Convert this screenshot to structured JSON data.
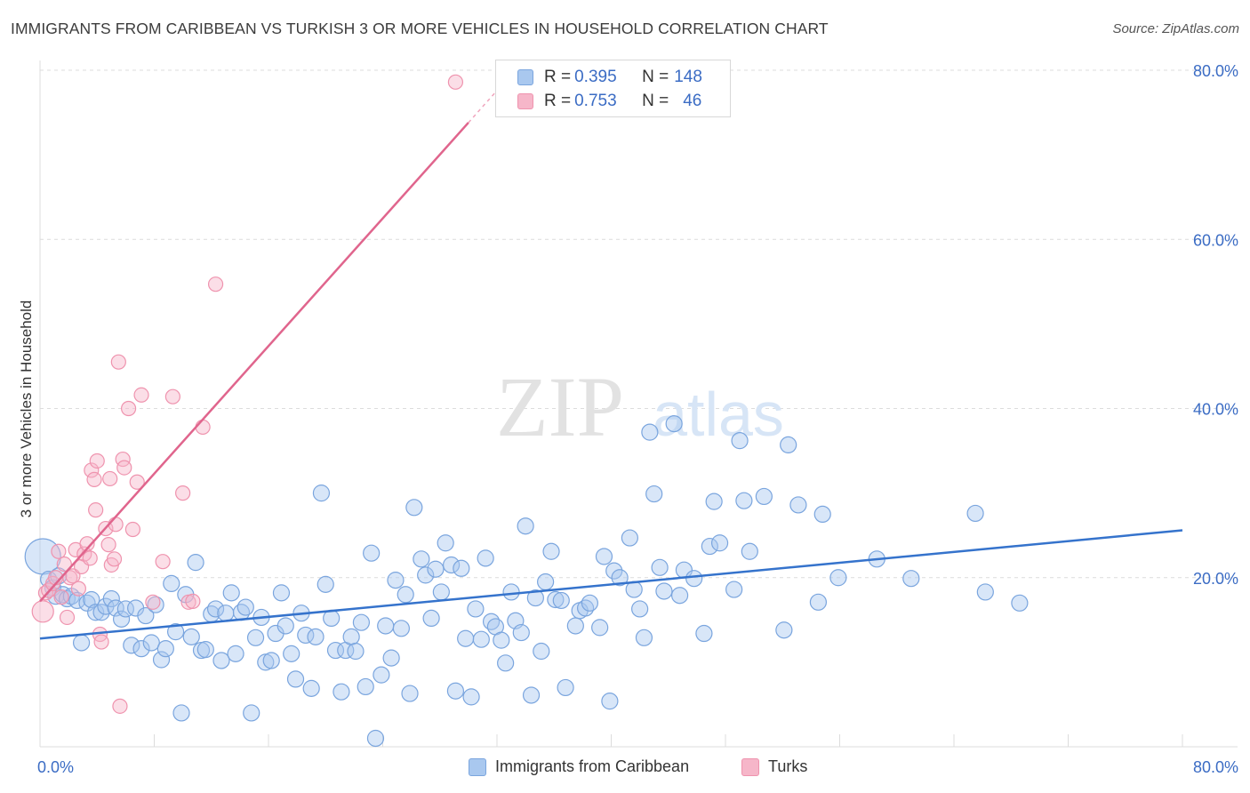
{
  "title": "IMMIGRANTS FROM CARIBBEAN VS TURKISH 3 OR MORE VEHICLES IN HOUSEHOLD CORRELATION CHART",
  "source": "Source: ZipAtlas.com",
  "watermark": {
    "zip": "ZIP",
    "atlas": "atlas"
  },
  "legend": {
    "caribbean": {
      "r_label": "R = ",
      "r_value": "0.395",
      "n_label": "N = ",
      "n_value": "148"
    },
    "turks": {
      "r_label": "R = ",
      "r_value": "0.753",
      "n_label": "N = ",
      "n_value": "46"
    }
  },
  "colors": {
    "blue_fill": "#a9c8ef",
    "blue_stroke": "#7aa5de",
    "blue_line": "#3573cc",
    "pink_fill": "#f6b6c9",
    "pink_stroke": "#ef93ae",
    "pink_line": "#e0658d",
    "axis_text": "#3b6cc4",
    "grid": "#dcdcdc"
  },
  "chart_data": {
    "type": "scatter",
    "title": "IMMIGRANTS FROM CARIBBEAN VS TURKISH 3 OR MORE VEHICLES IN HOUSEHOLD CORRELATION CHART",
    "xlabel": "",
    "ylabel": "3 or more Vehicles in Household",
    "xlim": [
      0,
      80
    ],
    "ylim": [
      0,
      80
    ],
    "x_tick_labels": [
      "0.0%",
      "80.0%"
    ],
    "y_tick_labels": [
      "20.0%",
      "40.0%",
      "60.0%",
      "80.0%"
    ],
    "y_ticks": [
      20,
      40,
      60,
      80
    ],
    "grid": true,
    "legend_position": "top-center",
    "series": [
      {
        "name": "Immigrants from Caribbean",
        "trendline": {
          "x": [
            0,
            80
          ],
          "y": [
            12.8,
            25.6
          ]
        },
        "points": [
          [
            0.2,
            22.5
          ],
          [
            0.6,
            19.8
          ],
          [
            0.9,
            18.8
          ],
          [
            1.1,
            17.8
          ],
          [
            1.3,
            20.2
          ],
          [
            1.6,
            18.0
          ],
          [
            1.9,
            17.5
          ],
          [
            2.2,
            17.8
          ],
          [
            2.6,
            17.3
          ],
          [
            2.9,
            12.3
          ],
          [
            3.3,
            17.0
          ],
          [
            3.6,
            17.4
          ],
          [
            3.9,
            15.9
          ],
          [
            4.3,
            15.9
          ],
          [
            4.6,
            16.6
          ],
          [
            5.0,
            17.5
          ],
          [
            5.3,
            16.4
          ],
          [
            5.7,
            15.1
          ],
          [
            6.0,
            16.3
          ],
          [
            6.4,
            12.0
          ],
          [
            6.7,
            16.4
          ],
          [
            7.1,
            11.6
          ],
          [
            7.4,
            15.5
          ],
          [
            7.8,
            12.3
          ],
          [
            8.1,
            16.8
          ],
          [
            8.5,
            10.3
          ],
          [
            8.8,
            11.6
          ],
          [
            9.2,
            19.3
          ],
          [
            9.5,
            13.6
          ],
          [
            9.9,
            4.0
          ],
          [
            10.2,
            18.0
          ],
          [
            10.6,
            13.0
          ],
          [
            10.9,
            21.8
          ],
          [
            11.3,
            11.4
          ],
          [
            11.6,
            11.5
          ],
          [
            12.0,
            15.7
          ],
          [
            12.3,
            16.3
          ],
          [
            12.7,
            10.2
          ],
          [
            13.0,
            15.8
          ],
          [
            13.4,
            18.2
          ],
          [
            13.7,
            11.0
          ],
          [
            14.1,
            15.9
          ],
          [
            14.4,
            16.5
          ],
          [
            14.8,
            4.0
          ],
          [
            15.1,
            12.9
          ],
          [
            15.5,
            15.3
          ],
          [
            15.8,
            10.0
          ],
          [
            16.2,
            10.2
          ],
          [
            16.5,
            13.4
          ],
          [
            16.9,
            18.2
          ],
          [
            17.2,
            14.3
          ],
          [
            17.6,
            11.0
          ],
          [
            17.9,
            8.0
          ],
          [
            18.3,
            15.8
          ],
          [
            18.6,
            13.2
          ],
          [
            19.0,
            6.9
          ],
          [
            19.3,
            13.0
          ],
          [
            19.7,
            30.0
          ],
          [
            20.0,
            19.2
          ],
          [
            20.4,
            15.2
          ],
          [
            20.7,
            11.4
          ],
          [
            21.1,
            6.5
          ],
          [
            21.4,
            11.4
          ],
          [
            21.8,
            13.0
          ],
          [
            22.1,
            11.3
          ],
          [
            22.5,
            14.7
          ],
          [
            22.8,
            7.1
          ],
          [
            23.2,
            22.9
          ],
          [
            23.5,
            1.0
          ],
          [
            23.9,
            8.5
          ],
          [
            24.2,
            14.3
          ],
          [
            24.6,
            10.5
          ],
          [
            24.9,
            19.7
          ],
          [
            25.3,
            14.0
          ],
          [
            25.6,
            18.0
          ],
          [
            25.9,
            6.3
          ],
          [
            26.2,
            28.3
          ],
          [
            26.7,
            22.2
          ],
          [
            27.0,
            20.3
          ],
          [
            27.4,
            15.2
          ],
          [
            27.7,
            21.0
          ],
          [
            28.1,
            18.3
          ],
          [
            28.4,
            24.1
          ],
          [
            28.8,
            21.5
          ],
          [
            29.1,
            6.6
          ],
          [
            29.5,
            21.1
          ],
          [
            29.8,
            12.8
          ],
          [
            30.2,
            5.9
          ],
          [
            30.5,
            16.3
          ],
          [
            30.9,
            12.7
          ],
          [
            31.2,
            22.3
          ],
          [
            31.6,
            14.8
          ],
          [
            31.9,
            14.2
          ],
          [
            32.3,
            12.6
          ],
          [
            32.6,
            9.9
          ],
          [
            33.0,
            18.3
          ],
          [
            33.3,
            14.9
          ],
          [
            33.7,
            13.5
          ],
          [
            34.0,
            26.1
          ],
          [
            34.4,
            6.1
          ],
          [
            34.7,
            17.6
          ],
          [
            35.1,
            11.3
          ],
          [
            35.4,
            19.5
          ],
          [
            35.8,
            23.1
          ],
          [
            36.1,
            17.4
          ],
          [
            36.5,
            17.3
          ],
          [
            36.8,
            7.0
          ],
          [
            37.5,
            14.3
          ],
          [
            37.8,
            16.1
          ],
          [
            38.2,
            16.4
          ],
          [
            38.5,
            17.0
          ],
          [
            39.2,
            14.1
          ],
          [
            39.5,
            22.5
          ],
          [
            39.9,
            5.4
          ],
          [
            40.2,
            20.8
          ],
          [
            40.6,
            20.0
          ],
          [
            41.3,
            24.7
          ],
          [
            41.6,
            18.6
          ],
          [
            42.0,
            16.3
          ],
          [
            42.3,
            12.9
          ],
          [
            42.7,
            37.2
          ],
          [
            43.0,
            29.9
          ],
          [
            43.4,
            21.2
          ],
          [
            43.7,
            18.4
          ],
          [
            44.4,
            38.2
          ],
          [
            44.8,
            17.9
          ],
          [
            45.1,
            20.9
          ],
          [
            45.8,
            19.9
          ],
          [
            46.5,
            13.4
          ],
          [
            46.9,
            23.7
          ],
          [
            47.2,
            29.0
          ],
          [
            47.6,
            24.1
          ],
          [
            48.6,
            18.6
          ],
          [
            49.0,
            36.2
          ],
          [
            49.3,
            29.1
          ],
          [
            49.7,
            23.1
          ],
          [
            50.7,
            29.6
          ],
          [
            52.1,
            13.8
          ],
          [
            52.4,
            35.7
          ],
          [
            53.1,
            28.6
          ],
          [
            54.5,
            17.1
          ],
          [
            54.8,
            27.5
          ],
          [
            55.9,
            20.0
          ],
          [
            58.6,
            22.2
          ],
          [
            61.0,
            19.9
          ],
          [
            65.5,
            27.6
          ],
          [
            66.2,
            18.3
          ],
          [
            68.6,
            17.0
          ]
        ]
      },
      {
        "name": "Turks",
        "trendline": {
          "x": [
            0,
            30
          ],
          "y": [
            17.2,
            73.8
          ]
        },
        "trendline_dashed": {
          "x": [
            30,
            33
          ],
          "y": [
            73.8,
            79.5
          ]
        },
        "points": [
          [
            0.2,
            16.0
          ],
          [
            0.4,
            18.2
          ],
          [
            0.6,
            18.5
          ],
          [
            0.9,
            19.3
          ],
          [
            1.1,
            20.0
          ],
          [
            1.3,
            23.1
          ],
          [
            1.5,
            17.7
          ],
          [
            1.7,
            21.6
          ],
          [
            1.9,
            15.3
          ],
          [
            2.1,
            20.0
          ],
          [
            2.3,
            20.2
          ],
          [
            2.5,
            23.3
          ],
          [
            2.7,
            18.7
          ],
          [
            2.9,
            21.3
          ],
          [
            3.1,
            22.8
          ],
          [
            3.3,
            24.0
          ],
          [
            3.5,
            22.3
          ],
          [
            3.6,
            32.7
          ],
          [
            3.8,
            31.6
          ],
          [
            3.9,
            28.0
          ],
          [
            4.0,
            33.8
          ],
          [
            4.2,
            13.3
          ],
          [
            4.3,
            12.4
          ],
          [
            4.6,
            25.8
          ],
          [
            4.8,
            23.9
          ],
          [
            4.9,
            31.7
          ],
          [
            5.0,
            21.5
          ],
          [
            5.2,
            22.2
          ],
          [
            5.3,
            26.3
          ],
          [
            5.5,
            45.5
          ],
          [
            5.6,
            4.8
          ],
          [
            5.8,
            34.0
          ],
          [
            5.9,
            33.0
          ],
          [
            6.2,
            40.0
          ],
          [
            6.5,
            25.7
          ],
          [
            6.8,
            31.3
          ],
          [
            7.1,
            41.6
          ],
          [
            7.9,
            17.1
          ],
          [
            8.6,
            21.9
          ],
          [
            9.3,
            41.4
          ],
          [
            10.0,
            30.0
          ],
          [
            10.4,
            17.1
          ],
          [
            10.7,
            17.2
          ],
          [
            11.4,
            37.8
          ],
          [
            12.3,
            54.7
          ],
          [
            29.1,
            78.6
          ]
        ]
      }
    ]
  },
  "bottom_legend": {
    "caribbean": "Immigrants from Caribbean",
    "turks": "Turks"
  }
}
